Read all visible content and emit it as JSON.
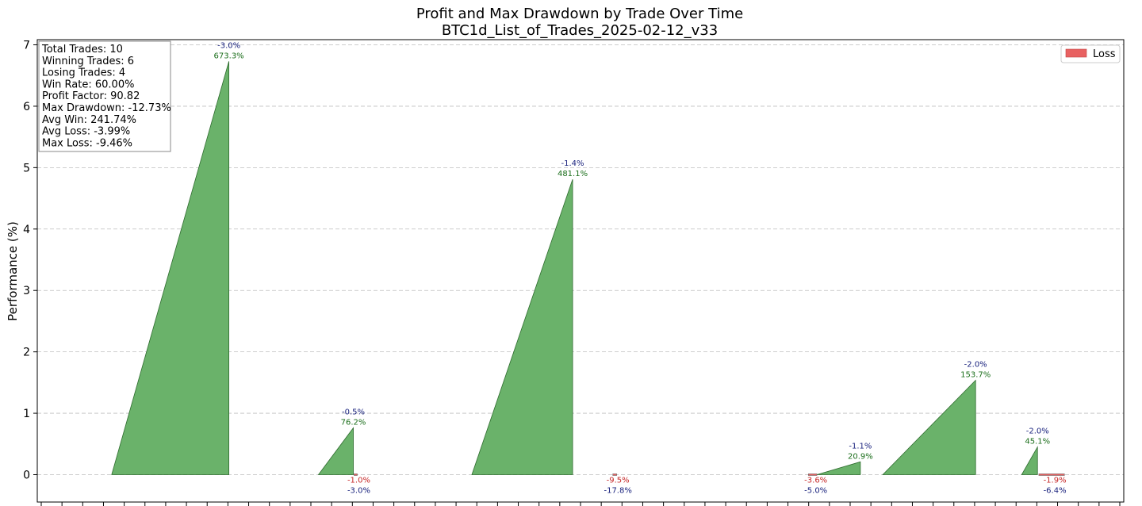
{
  "chart_data": {
    "type": "area",
    "title": "Profit and Max Drawdown by Trade Over Time",
    "subtitle": "BTC1d_List_of_Trades_2025-02-12_v33",
    "ylabel": "Performance (%)",
    "xlabel": "",
    "ylim": [
      -0.45,
      7.08
    ],
    "yticks": [
      "0",
      "1",
      "2",
      "3",
      "4",
      "5",
      "6",
      "7"
    ],
    "grid": true,
    "legend": {
      "position": "top-right",
      "entries": [
        {
          "name": "Loss",
          "color": "#e86161"
        }
      ]
    },
    "stats": [
      "Total Trades: 10",
      "Winning Trades: 6",
      "Losing Trades: 4",
      "Win Rate: 60.00%",
      "Profit Factor: 90.82",
      "Max Drawdown: -12.73%",
      "Avg Win: 241.74%",
      "Avg Loss: -3.99%",
      "Max Loss: -9.46%"
    ],
    "trades": [
      {
        "start": 0.113,
        "end": 0.291,
        "peak": 6.73,
        "result": "win",
        "drawdown_label": "-3.0%",
        "profit_label": "673.3%"
      },
      {
        "start": 0.427,
        "end": 0.48,
        "peak": 0.762,
        "result": "win",
        "drawdown_label": "-0.5%",
        "profit_label": "76.2%"
      },
      {
        "start": 0.481,
        "end": 0.486,
        "peak": 0,
        "result": "loss",
        "drawdown_label": "-3.0%",
        "profit_label": "-1.0%"
      },
      {
        "start": 0.66,
        "end": 0.813,
        "peak": 4.81,
        "result": "win",
        "drawdown_label": "-1.4%",
        "profit_label": "481.1%"
      },
      {
        "start": 0.874,
        "end": 0.88,
        "peak": 0,
        "result": "loss",
        "drawdown_label": "-17.8%",
        "profit_label": "-9.5%"
      },
      {
        "start": 1.171,
        "end": 1.184,
        "peak": 0,
        "result": "loss",
        "drawdown_label": "-5.0%",
        "profit_label": "-3.6%"
      },
      {
        "start": 1.184,
        "end": 1.25,
        "peak": 0.209,
        "result": "win",
        "drawdown_label": "-1.1%",
        "profit_label": "20.9%"
      },
      {
        "start": 1.284,
        "end": 1.425,
        "peak": 1.537,
        "result": "win",
        "drawdown_label": "-2.0%",
        "profit_label": "153.7%"
      },
      {
        "start": 1.495,
        "end": 1.519,
        "peak": 0.451,
        "result": "win",
        "drawdown_label": "-2.0%",
        "profit_label": "45.1%"
      },
      {
        "start": 1.521,
        "end": 1.56,
        "peak": 0,
        "result": "loss",
        "drawdown_label": "-6.4%",
        "profit_label": "-1.9%"
      }
    ],
    "xrange": [
      0,
      1.65
    ],
    "colors": {
      "win": "#6ab26a",
      "win_edge": "#2e6b2e",
      "loss": "#e86161"
    }
  }
}
